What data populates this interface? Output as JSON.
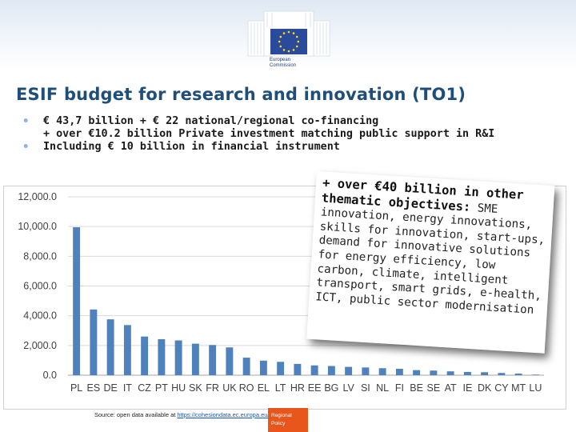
{
  "header": {
    "logo_name": "european-commission-logo",
    "logo_line1": "European",
    "logo_line2": "Commission"
  },
  "title": "ESIF budget for research and innovation (TO1)",
  "bullets": [
    "€ 43,7 billion + € 22 national/regional co-financing",
    "+ over €10.2 billion Private investment matching public support in R&I",
    "Including € 10 billion in financial instrument"
  ],
  "callout": {
    "lead": "+ over €40 billion in other thematic objectives:",
    "body": "SME innovation, energy innovations, skills for innovation, start-ups, demand for innovative solutions for energy efficiency, low carbon, climate, intelligent transport, smart grids, e-health, ICT, public sector modernisation"
  },
  "source": {
    "prefix": "Source: open data available at ",
    "link": "https://cohesiondata.ec.europa.eu/"
  },
  "badge": {
    "line1": "Regional",
    "line2": "Policy"
  },
  "colors": {
    "bar": "#4f81bd",
    "title": "#1f4e79",
    "badge": "#e8561b"
  },
  "chart_data": {
    "type": "bar",
    "categories": [
      "PL",
      "ES",
      "DE",
      "IT",
      "CZ",
      "PT",
      "HU",
      "SK",
      "FR",
      "UK",
      "RO",
      "EL",
      "LT",
      "HR",
      "EE",
      "BG",
      "LV",
      "SI",
      "NL",
      "FI",
      "BE",
      "SE",
      "AT",
      "IE",
      "DK",
      "CY",
      "MT",
      "LU"
    ],
    "values": [
      9950,
      4420,
      3760,
      3370,
      2600,
      2420,
      2340,
      2120,
      2030,
      1870,
      1180,
      980,
      900,
      760,
      660,
      620,
      560,
      520,
      470,
      430,
      340,
      310,
      260,
      220,
      200,
      150,
      110,
      40
    ],
    "y_ticks": [
      "0.0",
      "2,000.0",
      "4,000.0",
      "6,000.0",
      "8,000.0",
      "10,000.0",
      "12,000.0"
    ],
    "ylim": [
      0,
      12000
    ],
    "grid": true,
    "legend": "none"
  }
}
